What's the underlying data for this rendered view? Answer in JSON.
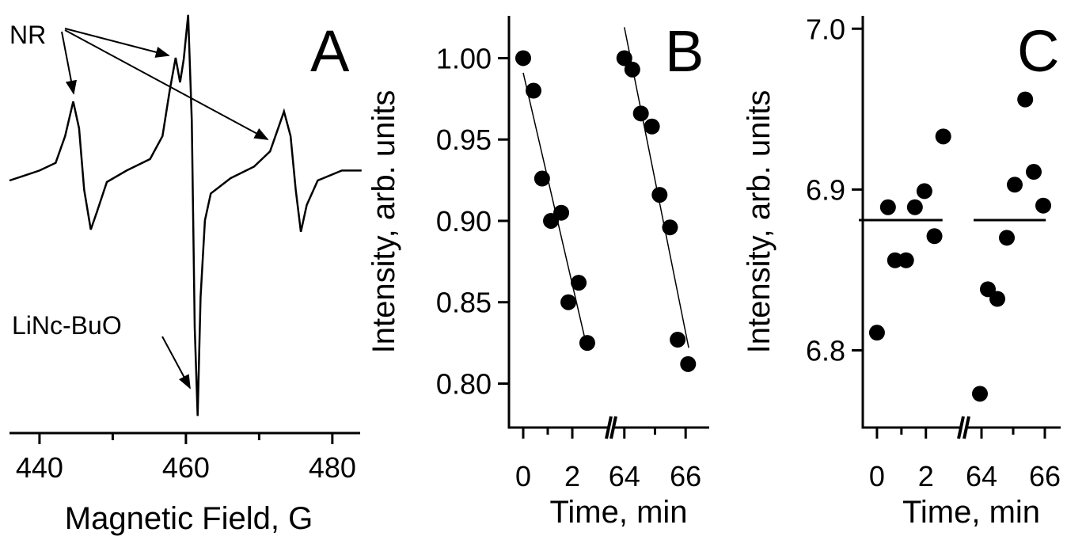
{
  "chart_data": [
    {
      "type": "line",
      "panel_label": "A",
      "xlabel": "Magnetic Field, G",
      "color": "#000000",
      "x": [
        435.9,
        437.8,
        440,
        442.2,
        443.5,
        444.6,
        445.4,
        446.1,
        447,
        447.8,
        449.2,
        451.9,
        455.1,
        456.8,
        457.8,
        458.6,
        459.2,
        459.7,
        460.3,
        460.8,
        461.2,
        461.6,
        462,
        462.6,
        463.4,
        466.1,
        469.3,
        471.5,
        472.6,
        473.4,
        474.3,
        475,
        475.7,
        476.5,
        478,
        481.3,
        484
      ],
      "values": [
        -0.03,
        0.03,
        0.1,
        0.2,
        0.55,
        1.0,
        0.65,
        -0.15,
        -0.67,
        -0.45,
        -0.05,
        0.1,
        0.25,
        0.55,
        1.15,
        1.57,
        1.25,
        1.55,
        2.13,
        0.75,
        -1.95,
        -3.1,
        -1.55,
        -0.55,
        -0.2,
        0,
        0.15,
        0.35,
        0.65,
        0.87,
        0.55,
        -0.15,
        -0.7,
        -0.35,
        -0.03,
        0.1,
        0.1
      ],
      "xlim": [
        435.9,
        483.8
      ],
      "xticks": [
        440,
        460,
        480
      ],
      "xminorticks": [
        450,
        470
      ],
      "ylim": [
        -3.2,
        2.2
      ],
      "annotations": [
        "NR",
        "LiNc-BuO"
      ]
    },
    {
      "type": "scatter",
      "panel_label": "B",
      "xlabel": "Time, min",
      "ylabel": "Intensity, arb. units",
      "color": "#000000",
      "x": [
        0,
        0.42,
        0.77,
        1.13,
        1.55,
        1.84,
        2.26,
        2.61,
        64.0,
        64.26,
        64.54,
        64.9,
        65.15,
        65.49,
        65.74,
        66.08
      ],
      "values": [
        1.0,
        0.98,
        0.926,
        0.9,
        0.905,
        0.85,
        0.862,
        0.825,
        1.0,
        0.993,
        0.966,
        0.958,
        0.916,
        0.896,
        0.827,
        0.812
      ],
      "fits": [
        {
          "x": [
            0,
            2.6
          ],
          "values": [
            0.991,
            0.822
          ]
        },
        {
          "x": [
            64.0,
            66.1
          ],
          "values": [
            1.019,
            0.822
          ]
        }
      ],
      "xlim": [
        -0.58,
        66.77
      ],
      "xbreak": [
        3.45,
        63.67
      ],
      "xticks": [
        0,
        2,
        64,
        66
      ],
      "xminorticks": [
        1,
        65
      ],
      "ylim": [
        0.773,
        1.026
      ],
      "yticks": [
        {
          "value": 0.8,
          "label": "0.80"
        },
        0.85,
        {
          "value": 0.9,
          "label": "0.90"
        },
        0.95,
        {
          "value": 1,
          "label": "1.00"
        }
      ]
    },
    {
      "type": "scatter",
      "panel_label": "C",
      "xlabel": "Time, min",
      "ylabel": "Intensity, arb. units",
      "color": "#000000",
      "x": [
        0,
        0.45,
        0.74,
        1.19,
        1.55,
        1.94,
        2.35,
        2.71,
        63.95,
        64.2,
        64.5,
        64.8,
        65.05,
        65.38,
        65.65,
        65.95
      ],
      "values": [
        6.811,
        6.889,
        6.856,
        6.856,
        6.889,
        6.899,
        6.871,
        6.933,
        6.773,
        6.838,
        6.832,
        6.87,
        6.903,
        6.956,
        6.911,
        6.89
      ],
      "means": [
        {
          "x": [
            -0.74,
            2.68
          ],
          "values": [
            6.881,
            6.881
          ]
        },
        {
          "x": [
            63.75,
            66.03
          ],
          "values": [
            6.881,
            6.881
          ]
        }
      ],
      "xlim": [
        -0.58,
        66.5
      ],
      "xbreak": [
        3.4,
        63.55
      ],
      "xticks": [
        0,
        2,
        64,
        66
      ],
      "xminorticks": [
        1,
        65
      ],
      "ylim": [
        6.752,
        7.008
      ],
      "yticks": [
        6.8,
        6.9,
        {
          "value": 7,
          "label": "7.0"
        }
      ]
    }
  ]
}
